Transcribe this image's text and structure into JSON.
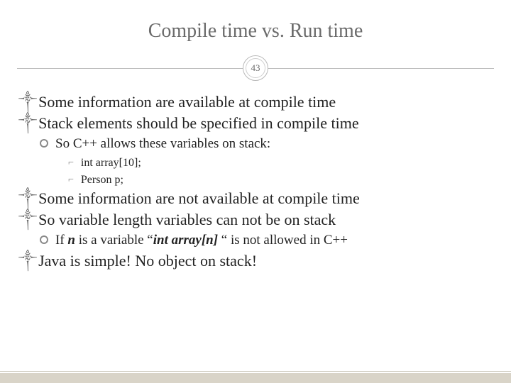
{
  "slide": {
    "title": "Compile time vs. Run time",
    "page_number": "43",
    "colors": {
      "title_color": "#6b6b6b",
      "text_color": "#222222",
      "divider_color": "#b9b9b9",
      "badge_inner_border": "#cfcfcf",
      "footer_bg": "#d9d4c8",
      "bullet_gray": "#8a8a8a",
      "background": "#ffffff"
    },
    "typography": {
      "title_fontsize": 28,
      "lvl1_fontsize": 22,
      "lvl2_fontsize": 19,
      "lvl3_fontsize": 16,
      "font_family": "Georgia serif"
    },
    "bullets": {
      "lvl1_glyph": "༒",
      "lvl3_glyph": "⌐"
    },
    "items": [
      {
        "level": 1,
        "text": "Some information are available at compile time"
      },
      {
        "level": 1,
        "text": "Stack elements should be specified in compile time"
      },
      {
        "level": 2,
        "text": "So C++ allows these variables on stack:"
      },
      {
        "level": 3,
        "text": "int array[10];"
      },
      {
        "level": 3,
        "text": "Person p;"
      },
      {
        "level": 1,
        "text": "Some information are not available at compile time"
      },
      {
        "level": 1,
        "text": "So variable length variables can not be on stack"
      },
      {
        "level": 2,
        "html": "If <span class='bolditalic'>n</span> is a variable “<span class='bolditalic'>int array[n]</span> “ is not allowed in C++"
      },
      {
        "level": 1,
        "text": "Java is simple! No object on stack!"
      }
    ]
  }
}
